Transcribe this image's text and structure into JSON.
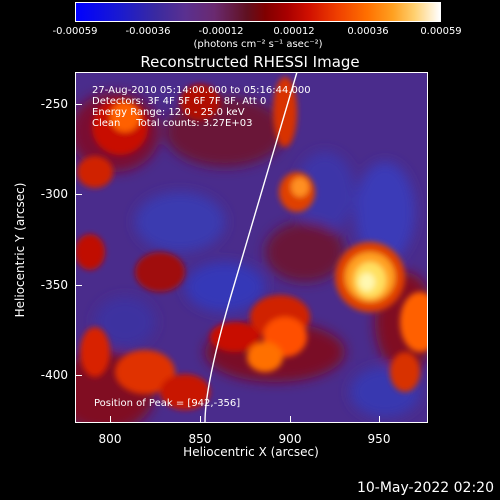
{
  "colorbar": {
    "labels": [
      "-0.00059",
      "-0.00036",
      "-0.00012",
      "0.00012",
      "0.00036",
      "0.00059"
    ],
    "units": "(photons cm⁻² s⁻¹ asec⁻²)"
  },
  "plot": {
    "title": "Reconstructed RHESSI Image",
    "info_lines": [
      "27-Aug-2010 05:14:00.000 to 05:16:44.000",
      "Detectors: 3F 4F 5F 6F 7F 8F, Att 0",
      "Energy Range: 12.0 - 25.0 keV",
      "Clean     Total counts: 3.27E+03"
    ],
    "peak_text": "Position of Peak = [942,-356]",
    "xlabel": "Heliocentric X (arcsec)",
    "ylabel": "Heliocentric Y (arcsec)",
    "x_ticks": [
      "800",
      "850",
      "900",
      "950"
    ],
    "y_ticks": [
      "-250",
      "-300",
      "-350",
      "-400"
    ]
  },
  "footer": {
    "timestamp": "10-May-2022 02:20"
  },
  "colors": {
    "background": "#000000",
    "low": "#0000ff",
    "mid": "#800000",
    "high": "#ffffff"
  }
}
